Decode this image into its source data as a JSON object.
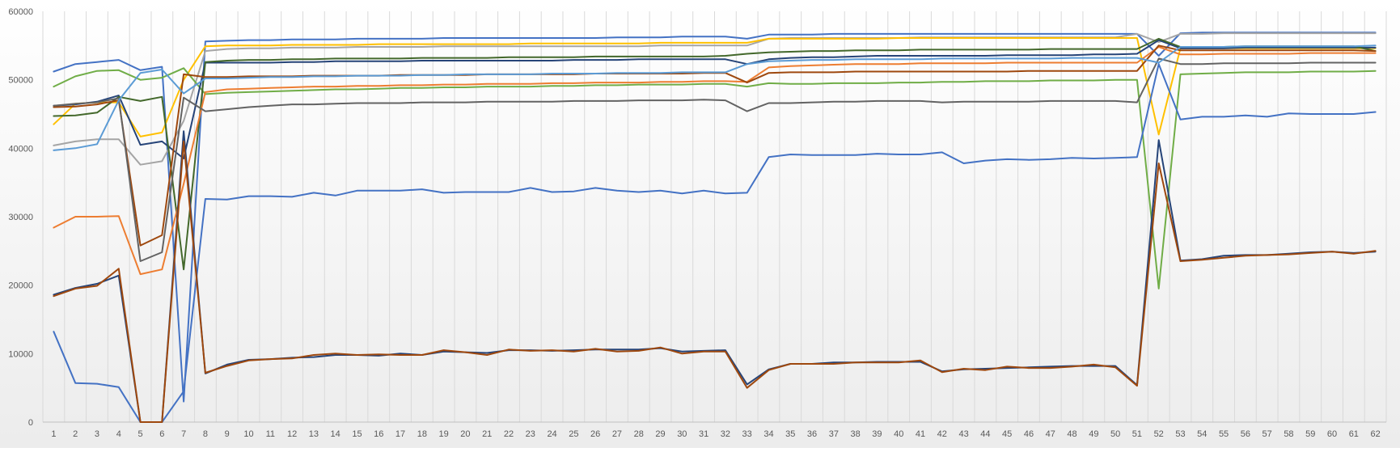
{
  "chart_data": {
    "type": "line",
    "title": "",
    "xlabel": "",
    "ylabel": "",
    "ylim": [
      0,
      60000
    ],
    "yticks": [
      0,
      10000,
      20000,
      30000,
      40000,
      50000,
      60000
    ],
    "ytick_labels": [
      "0",
      "10000",
      "20000",
      "30000",
      "40000",
      "50000",
      "60000"
    ],
    "x": [
      1,
      2,
      3,
      4,
      5,
      6,
      7,
      8,
      9,
      10,
      11,
      12,
      13,
      14,
      15,
      16,
      17,
      18,
      19,
      20,
      21,
      22,
      23,
      24,
      25,
      26,
      27,
      28,
      29,
      30,
      31,
      32,
      33,
      34,
      35,
      36,
      37,
      38,
      39,
      40,
      41,
      42,
      43,
      44,
      45,
      46,
      47,
      48,
      49,
      50,
      51,
      52,
      53,
      54,
      55,
      56,
      57,
      58,
      59,
      60,
      61,
      62
    ],
    "x_labels": [
      "1",
      "2",
      "3",
      "4",
      "5",
      "6",
      "7",
      "8",
      "9",
      "10",
      "11",
      "12",
      "13",
      "14",
      "15",
      "16",
      "17",
      "18",
      "19",
      "20",
      "21",
      "22",
      "23",
      "24",
      "25",
      "26",
      "27",
      "28",
      "29",
      "30",
      "31",
      "32",
      "33",
      "34",
      "35",
      "36",
      "37",
      "38",
      "39",
      "40",
      "41",
      "42",
      "43",
      "44",
      "45",
      "46",
      "47",
      "48",
      "49",
      "50",
      "51",
      "52",
      "53",
      "54",
      "55",
      "56",
      "57",
      "58",
      "59",
      "60",
      "61",
      "62"
    ],
    "grid": "vertical",
    "legend": "none",
    "background": "gradient",
    "series": [
      {
        "color": "#4472c4",
        "values": [
          51200,
          52300,
          52600,
          52900,
          51400,
          51900,
          3000,
          55600,
          55700,
          55800,
          55800,
          55900,
          55900,
          55900,
          56000,
          56000,
          56000,
          56000,
          56100,
          56100,
          56100,
          56100,
          56100,
          56100,
          56100,
          56100,
          56200,
          56200,
          56200,
          56300,
          56300,
          56300,
          56000,
          56600,
          56600,
          56600,
          56700,
          56700,
          56700,
          56700,
          56700,
          56700,
          56700,
          56700,
          56700,
          56700,
          56700,
          56700,
          56700,
          56700,
          56700,
          53500,
          56800,
          56900,
          56900,
          56900,
          56900,
          56900,
          56900,
          56900,
          56900,
          56900
        ]
      },
      {
        "color": "#a5a5a5",
        "values": [
          40400,
          41000,
          41300,
          41300,
          37600,
          38100,
          44000,
          54200,
          54500,
          54600,
          54600,
          54700,
          54700,
          54700,
          54800,
          54800,
          54800,
          54800,
          54900,
          54900,
          54900,
          54900,
          54900,
          54900,
          54900,
          54900,
          54900,
          54900,
          55000,
          55000,
          55000,
          55000,
          55000,
          56000,
          56100,
          56100,
          56100,
          56100,
          56100,
          56100,
          56200,
          56200,
          56200,
          56200,
          56200,
          56200,
          56200,
          56200,
          56200,
          56200,
          56700,
          55500,
          56700,
          56700,
          56800,
          56800,
          56800,
          56800,
          56800,
          56800,
          56800,
          56800
        ]
      },
      {
        "color": "#ffc000",
        "values": [
          43500,
          46500,
          46700,
          46700,
          41700,
          42300,
          50000,
          54900,
          55000,
          55000,
          55000,
          55100,
          55100,
          55100,
          55100,
          55200,
          55200,
          55200,
          55200,
          55200,
          55200,
          55200,
          55300,
          55300,
          55300,
          55300,
          55300,
          55300,
          55400,
          55400,
          55400,
          55400,
          55400,
          56000,
          56000,
          56000,
          56000,
          56000,
          56000,
          56100,
          56100,
          56100,
          56100,
          56100,
          56100,
          56100,
          56100,
          56100,
          56100,
          56100,
          56100,
          42000,
          54600,
          54600,
          54600,
          54600,
          54600,
          54600,
          54600,
          54600,
          54600,
          54600
        ]
      },
      {
        "color": "#70ad47",
        "values": [
          49000,
          50500,
          51300,
          51400,
          50000,
          50300,
          51700,
          47900,
          48100,
          48200,
          48300,
          48400,
          48500,
          48600,
          48600,
          48700,
          48800,
          48800,
          48900,
          48900,
          49000,
          49000,
          49000,
          49100,
          49100,
          49200,
          49200,
          49300,
          49300,
          49300,
          49400,
          49400,
          49000,
          49500,
          49400,
          49400,
          49500,
          49500,
          49500,
          49600,
          49600,
          49700,
          49700,
          49800,
          49800,
          49800,
          49900,
          49900,
          49900,
          50000,
          50000,
          19500,
          50800,
          50900,
          51000,
          51100,
          51100,
          51100,
          51200,
          51200,
          51200,
          51300
        ]
      },
      {
        "color": "#264478",
        "values": [
          46200,
          46400,
          46800,
          47700,
          40500,
          41000,
          38500,
          52500,
          52500,
          52500,
          52500,
          52600,
          52600,
          52700,
          52700,
          52700,
          52700,
          52800,
          52800,
          52800,
          52800,
          52800,
          52800,
          52800,
          52900,
          52900,
          52900,
          53000,
          53000,
          53000,
          53000,
          53000,
          52300,
          53000,
          53200,
          53300,
          53300,
          53400,
          53500,
          53500,
          53500,
          53500,
          53500,
          53500,
          53600,
          53600,
          53600,
          53600,
          53700,
          53700,
          53800,
          55800,
          54600,
          54600,
          54600,
          54700,
          54700,
          54700,
          54700,
          54700,
          54700,
          54700
        ]
      },
      {
        "color": "#43682b",
        "values": [
          44700,
          44800,
          45200,
          47500,
          46900,
          47500,
          22300,
          52600,
          52800,
          52900,
          52900,
          53000,
          53000,
          53100,
          53100,
          53100,
          53100,
          53200,
          53200,
          53200,
          53200,
          53300,
          53300,
          53300,
          53300,
          53400,
          53400,
          53400,
          53400,
          53400,
          53400,
          53500,
          53800,
          54000,
          54100,
          54200,
          54200,
          54300,
          54300,
          54300,
          54400,
          54400,
          54400,
          54400,
          54400,
          54400,
          54500,
          54500,
          54500,
          54500,
          54500,
          56000,
          54800,
          54800,
          54800,
          54900,
          54900,
          54900,
          54900,
          54900,
          54900,
          54200
        ]
      },
      {
        "color": "#ed7d31",
        "values": [
          28400,
          30000,
          30000,
          30100,
          21600,
          22300,
          34800,
          48200,
          48600,
          48700,
          48800,
          48900,
          49000,
          49000,
          49100,
          49100,
          49200,
          49200,
          49300,
          49300,
          49400,
          49400,
          49400,
          49500,
          49500,
          49600,
          49600,
          49600,
          49700,
          49700,
          49800,
          49800,
          49700,
          51800,
          52000,
          52100,
          52200,
          52300,
          52300,
          52300,
          52400,
          52400,
          52400,
          52400,
          52500,
          52500,
          52500,
          52500,
          52500,
          52500,
          52500,
          54800,
          53700,
          53700,
          53800,
          53800,
          53800,
          53800,
          53900,
          53900,
          53900,
          53900
        ]
      },
      {
        "color": "#9e480e",
        "values": [
          46000,
          46100,
          46400,
          47000,
          25800,
          27300,
          50800,
          50400,
          50400,
          50500,
          50500,
          50500,
          50600,
          50600,
          50600,
          50600,
          50700,
          50700,
          50700,
          50700,
          50800,
          50800,
          50800,
          50800,
          50800,
          50900,
          50900,
          50900,
          50900,
          50900,
          51000,
          51000,
          49600,
          51000,
          51100,
          51100,
          51100,
          51200,
          51200,
          51200,
          51200,
          51200,
          51200,
          51200,
          51200,
          51300,
          51300,
          51300,
          51300,
          51300,
          51300,
          55000,
          54300,
          54300,
          54300,
          54300,
          54300,
          54300,
          54300,
          54300,
          54300,
          54200
        ]
      },
      {
        "color": "#636363",
        "values": [
          46200,
          46500,
          46700,
          47300,
          23500,
          24800,
          47400,
          45400,
          45700,
          46000,
          46200,
          46400,
          46400,
          46500,
          46600,
          46600,
          46600,
          46700,
          46700,
          46700,
          46800,
          46800,
          46800,
          46800,
          46900,
          46900,
          46900,
          47000,
          47000,
          47000,
          47100,
          47000,
          45400,
          46600,
          46600,
          46700,
          46800,
          46800,
          46900,
          46900,
          46900,
          46700,
          46800,
          46800,
          46800,
          46800,
          46900,
          46900,
          46900,
          46900,
          46700,
          53100,
          52300,
          52300,
          52400,
          52400,
          52400,
          52400,
          52500,
          52500,
          52500,
          52500
        ]
      },
      {
        "color": "#5b9bd5",
        "values": [
          39700,
          40000,
          40600,
          47000,
          51000,
          51500,
          48000,
          50200,
          50200,
          50300,
          50400,
          50400,
          50500,
          50500,
          50600,
          50600,
          50600,
          50700,
          50700,
          50800,
          50800,
          50800,
          50800,
          50900,
          50900,
          50900,
          51000,
          51000,
          51000,
          51100,
          51100,
          51100,
          52300,
          52700,
          52800,
          52900,
          52900,
          53000,
          53000,
          53000,
          53000,
          53100,
          53100,
          53100,
          53100,
          53100,
          53100,
          53200,
          53200,
          53200,
          53200,
          52500,
          54800,
          54800,
          54800,
          54900,
          54900,
          54900,
          54900,
          54900,
          54900,
          55000
        ]
      },
      {
        "color": "#4472c4",
        "values": [
          13200,
          5700,
          5600,
          5100,
          0,
          0,
          4500,
          32600,
          32500,
          33000,
          33000,
          32900,
          33500,
          33100,
          33800,
          33800,
          33800,
          34000,
          33500,
          33600,
          33600,
          33600,
          34200,
          33600,
          33700,
          34200,
          33800,
          33600,
          33800,
          33400,
          33800,
          33400,
          33500,
          38700,
          39100,
          39000,
          39000,
          39000,
          39200,
          39100,
          39100,
          39400,
          37800,
          38200,
          38400,
          38300,
          38400,
          38600,
          38500,
          38600,
          38700,
          52300,
          44200,
          44600,
          44600,
          44800,
          44600,
          45100,
          45000,
          45000,
          45000,
          45300
        ]
      },
      {
        "color": "#264478",
        "values": [
          18600,
          19600,
          20200,
          21400,
          0,
          0,
          42500,
          7100,
          8400,
          9100,
          9200,
          9400,
          9500,
          9800,
          9800,
          9700,
          10000,
          9800,
          10300,
          10200,
          10100,
          10500,
          10500,
          10400,
          10500,
          10600,
          10600,
          10600,
          10800,
          10300,
          10400,
          10500,
          5500,
          7700,
          8500,
          8500,
          8700,
          8700,
          8800,
          8800,
          8800,
          7400,
          7700,
          7800,
          7900,
          8000,
          8100,
          8200,
          8200,
          8200,
          5400,
          41200,
          23600,
          23800,
          24300,
          24400,
          24400,
          24600,
          24800,
          24900,
          24700,
          24900
        ]
      },
      {
        "color": "#9e480e",
        "values": [
          18400,
          19500,
          19900,
          22400,
          0,
          0,
          41000,
          7200,
          8200,
          9000,
          9200,
          9300,
          9800,
          10000,
          9800,
          9900,
          9800,
          9800,
          10500,
          10200,
          9800,
          10600,
          10400,
          10500,
          10300,
          10700,
          10300,
          10400,
          10900,
          10000,
          10300,
          10300,
          5000,
          7600,
          8500,
          8500,
          8500,
          8700,
          8700,
          8700,
          9000,
          7300,
          7800,
          7600,
          8100,
          7900,
          7900,
          8100,
          8400,
          8000,
          5300,
          37800,
          23500,
          23700,
          24000,
          24300,
          24400,
          24500,
          24700,
          24900,
          24600,
          25000
        ]
      }
    ]
  }
}
